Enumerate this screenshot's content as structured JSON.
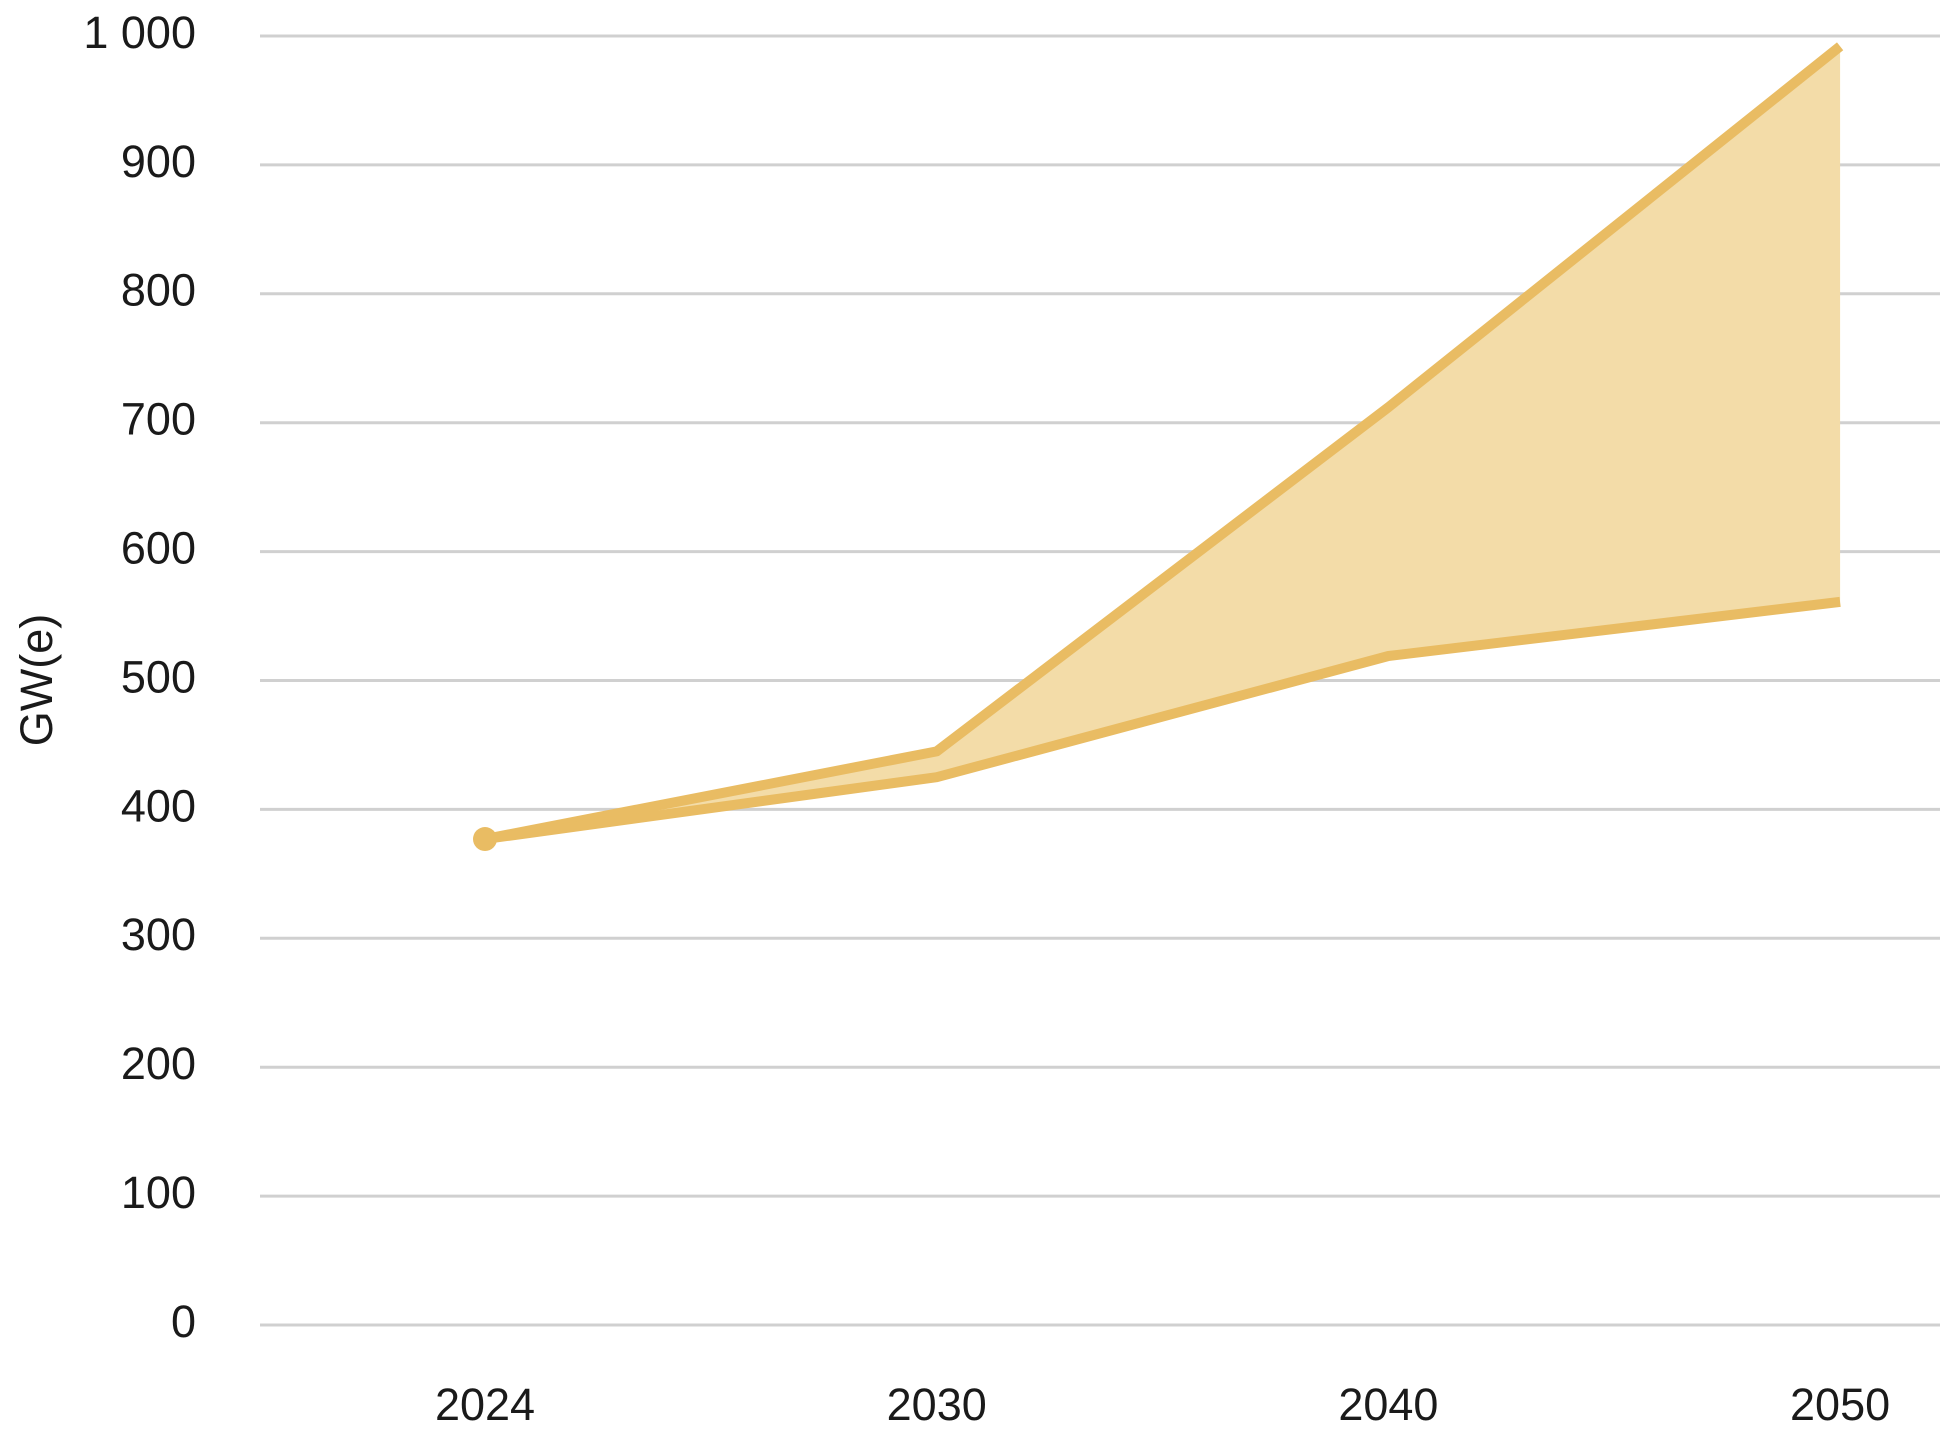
{
  "chart_data": {
    "type": "line",
    "y_label": "GW(e)",
    "categories": [
      "2024",
      "2030",
      "2040",
      "2050"
    ],
    "series": [
      {
        "color": "#e9bc63",
        "values": [
          377,
          445,
          712,
          992
        ]
      },
      {
        "color": "#e9bc63",
        "values": [
          377,
          425,
          519,
          561
        ]
      }
    ],
    "fill_between": true,
    "fill_color": "#f3dca8",
    "ylim": [
      0,
      1000
    ],
    "yticks": [
      0,
      100,
      200,
      300,
      400,
      500,
      600,
      700,
      800,
      900,
      {
        "value": 1000,
        "label": "1 000"
      }
    ],
    "grid": true
  }
}
